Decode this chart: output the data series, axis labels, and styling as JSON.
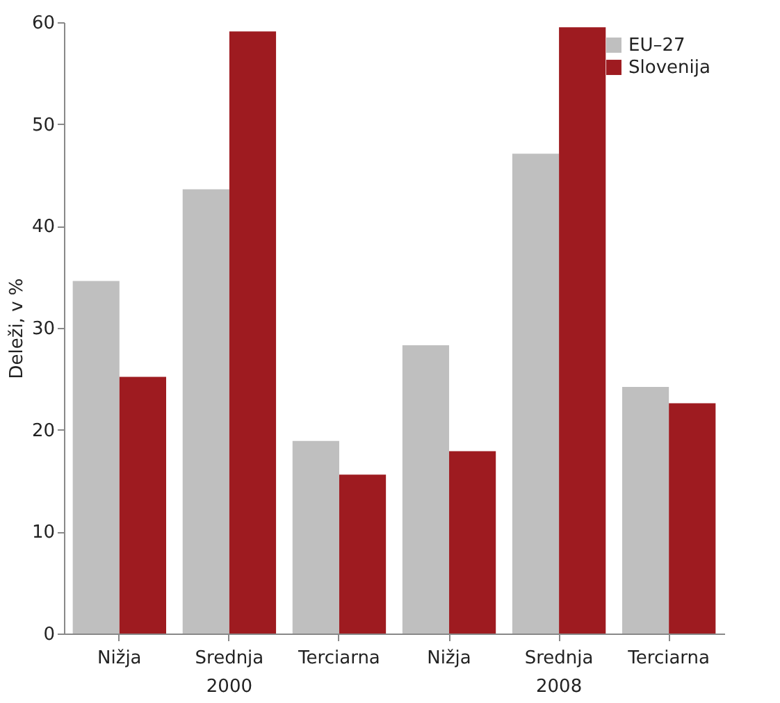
{
  "chart_data": {
    "type": "bar",
    "ylabel": "Deleži, v %",
    "categories": [
      "Nižja",
      "Srednja",
      "Terciarna",
      "Nižja",
      "Srednja",
      "Terciarna"
    ],
    "series": [
      {
        "name": "EU–27",
        "color": "#bfbfbf",
        "values": [
          34.6,
          43.6,
          18.9,
          28.3,
          47.1,
          24.2
        ]
      },
      {
        "name": "Slovenija",
        "color": "#9e1b20",
        "values": [
          25.2,
          59.1,
          15.6,
          17.9,
          59.5,
          22.6
        ]
      }
    ],
    "ylim": [
      0,
      60
    ],
    "yticks": [
      0,
      10,
      20,
      30,
      40,
      50,
      60
    ],
    "grid": false,
    "legend": "top right",
    "annotations": [
      "2000",
      "2008"
    ]
  }
}
